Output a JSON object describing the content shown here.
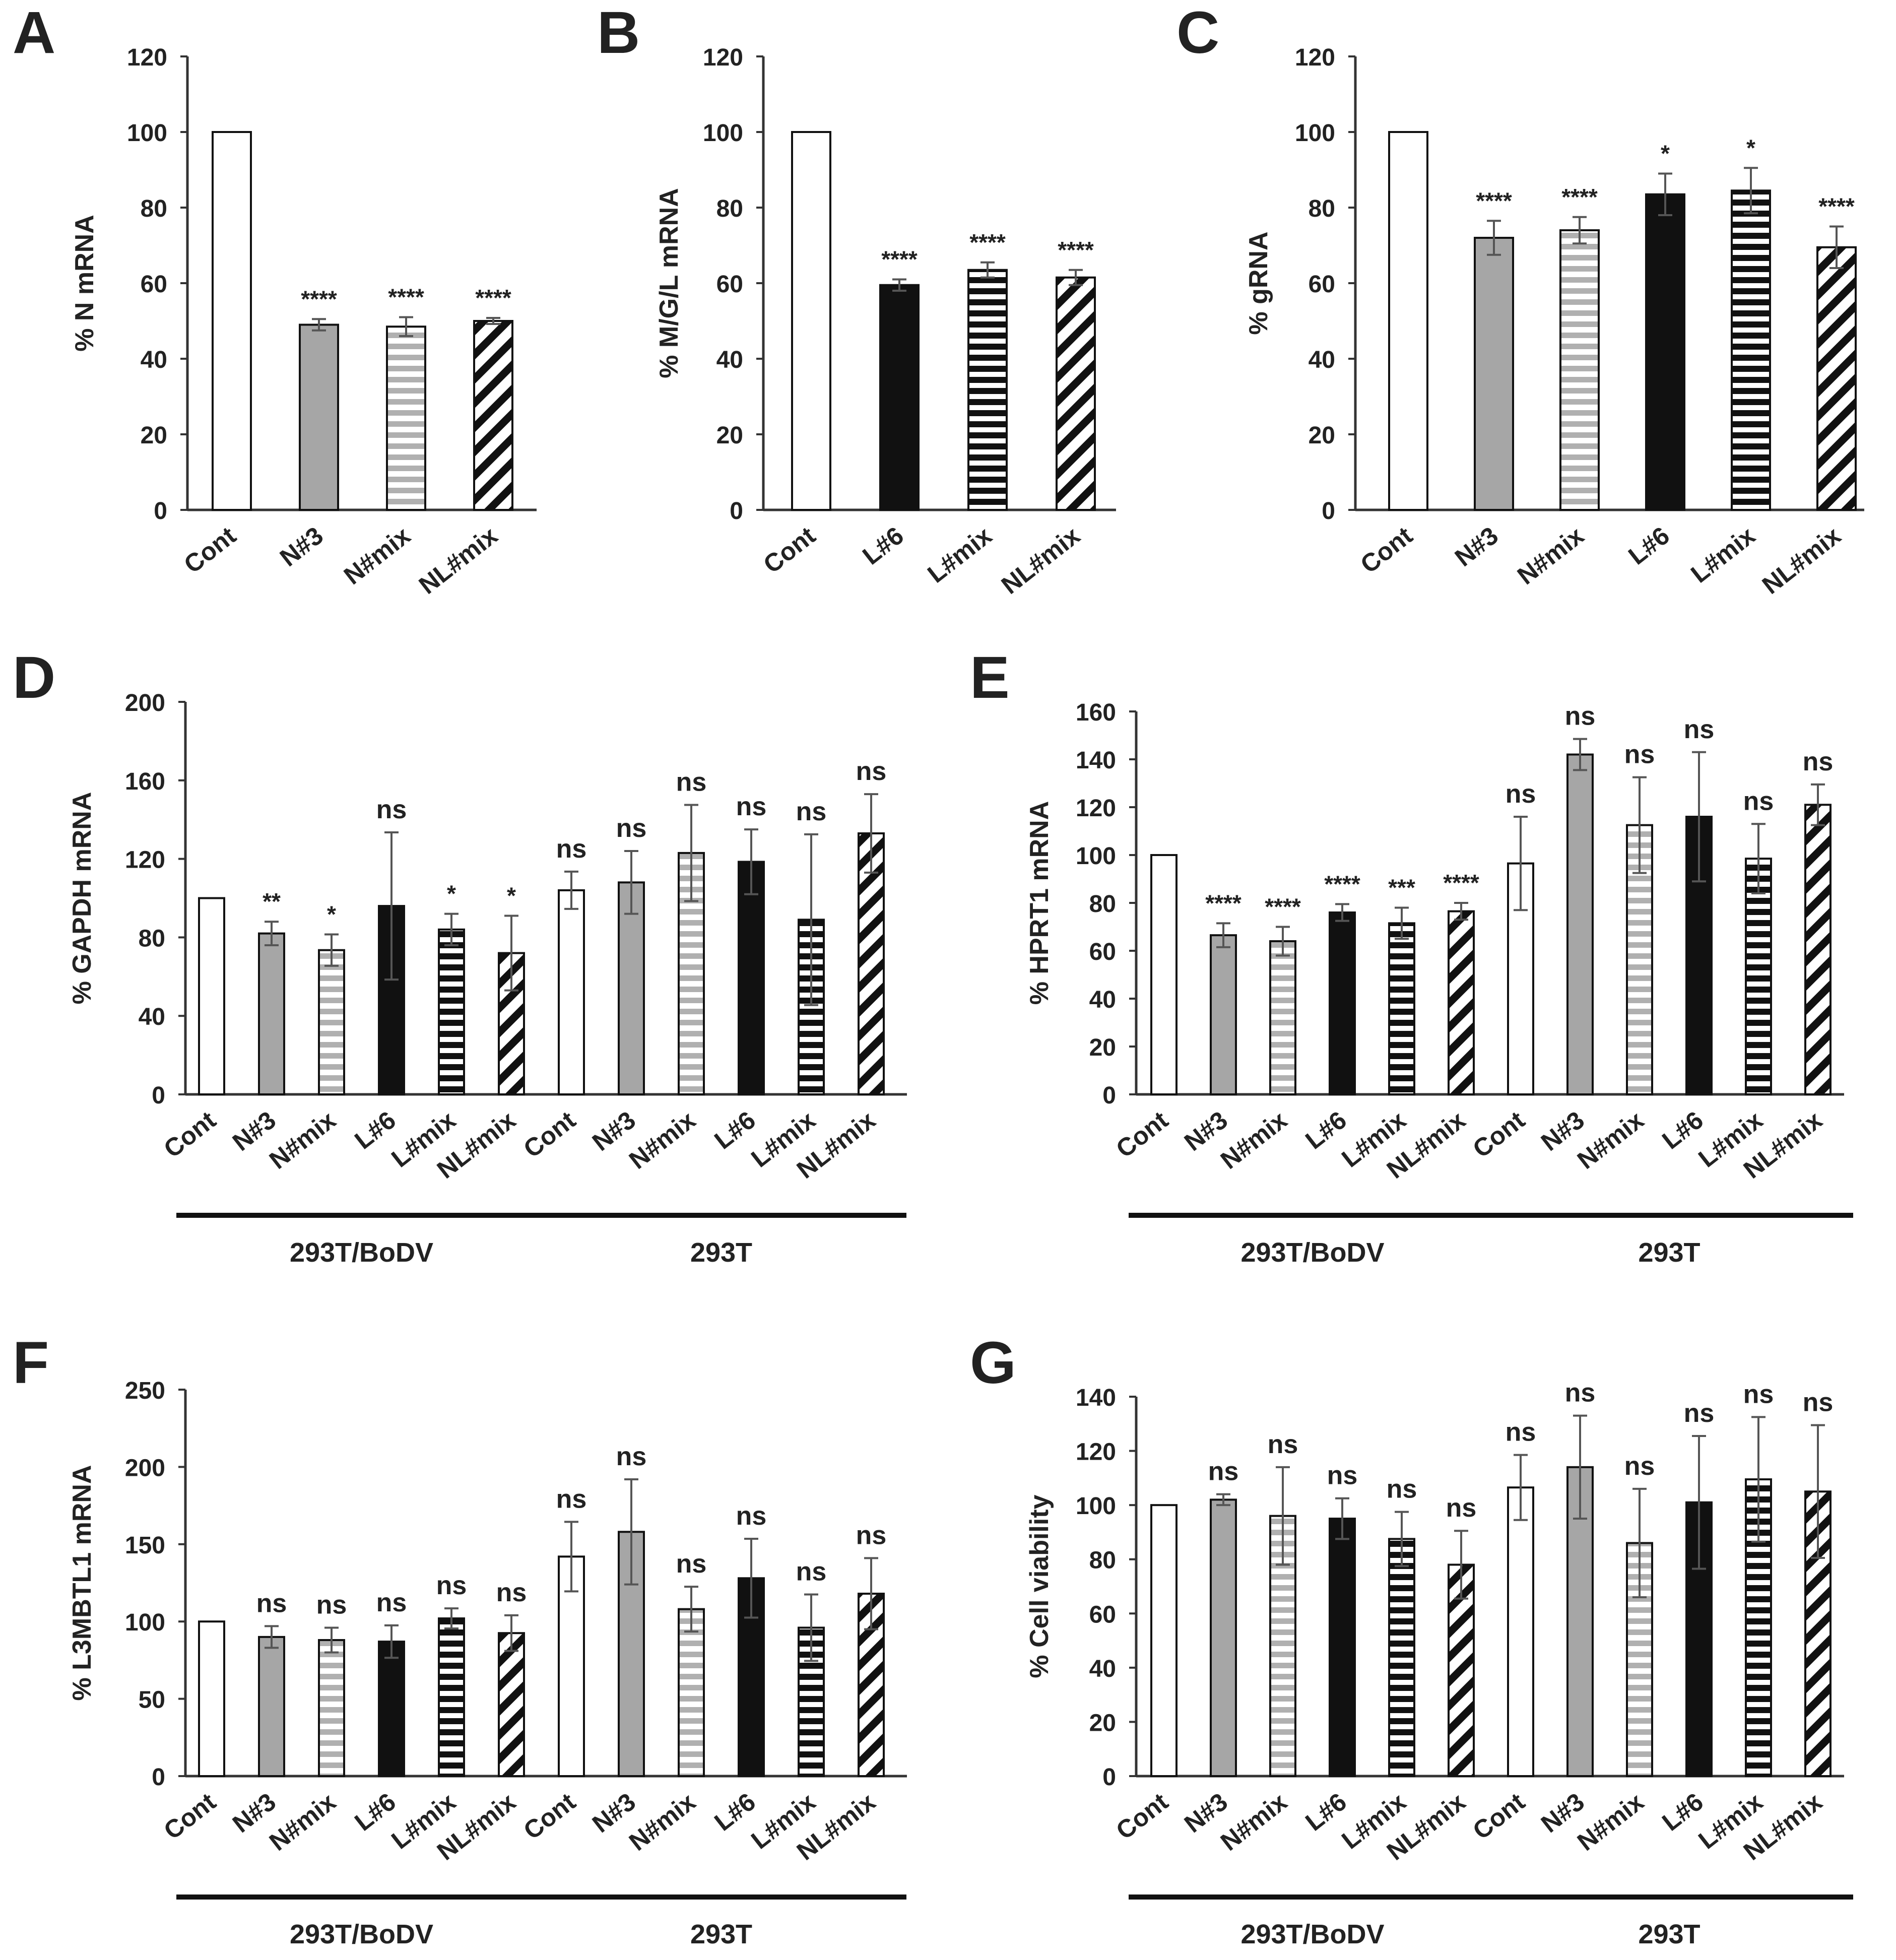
{
  "figure": {
    "patterns": {
      "white": "#ffffff",
      "gray": "#a6a6a6",
      "black": "#111111",
      "hstripe_light": "light gray horizontal stripes",
      "hstripe_dark": "black horizontal stripes",
      "diag": "black diagonal stripes"
    }
  },
  "chart_data": [
    {
      "panel": "A",
      "type": "bar",
      "ylabel": "% N mRNA",
      "ylim": [
        0,
        120
      ],
      "yticks": [
        "0",
        "20",
        "40",
        "60",
        "80",
        "100",
        "120"
      ],
      "categories": [
        "Cont",
        "N#3",
        "N#mix",
        "NL#mix"
      ],
      "values": [
        100,
        49,
        48.5,
        50
      ],
      "errors": [
        0,
        1.5,
        2.5,
        0.8
      ],
      "significance": [
        "",
        "****",
        "****",
        "****"
      ],
      "fills": [
        "white",
        "gray",
        "hstripe_light",
        "diag"
      ],
      "groups": []
    },
    {
      "panel": "B",
      "type": "bar",
      "ylabel": "% M/G/L mRNA",
      "ylim": [
        0,
        120
      ],
      "yticks": [
        "0",
        "20",
        "40",
        "60",
        "80",
        "100",
        "120"
      ],
      "categories": [
        "Cont",
        "L#6",
        "L#mix",
        "NL#mix"
      ],
      "values": [
        100,
        59.5,
        63.5,
        61.5
      ],
      "errors": [
        0,
        1.5,
        2,
        2
      ],
      "significance": [
        "",
        "****",
        "****",
        "****"
      ],
      "fills": [
        "white",
        "black",
        "hstripe_dark",
        "diag"
      ],
      "groups": []
    },
    {
      "panel": "C",
      "type": "bar",
      "ylabel": "% gRNA",
      "ylim": [
        0,
        120
      ],
      "yticks": [
        "0",
        "20",
        "40",
        "60",
        "80",
        "100",
        "120"
      ],
      "categories": [
        "Cont",
        "N#3",
        "N#mix",
        "L#6",
        "L#mix",
        "NL#mix"
      ],
      "values": [
        100,
        72,
        74,
        83.5,
        84.5,
        69.5
      ],
      "errors": [
        0,
        4.5,
        3.5,
        5.5,
        6,
        5.5
      ],
      "significance": [
        "",
        "****",
        "****",
        "*",
        "*",
        "****"
      ],
      "fills": [
        "white",
        "gray",
        "hstripe_light",
        "black",
        "hstripe_dark",
        "diag"
      ],
      "groups": []
    },
    {
      "panel": "D",
      "type": "bar",
      "ylabel": "% GAPDH mRNA",
      "ylim": [
        0,
        200
      ],
      "yticks": [
        "0",
        "40",
        "80",
        "120",
        "160",
        "200"
      ],
      "categories": [
        "Cont",
        "N#3",
        "N#mix",
        "L#6",
        "L#mix",
        "NL#mix",
        "Cont",
        "N#3",
        "N#mix",
        "L#6",
        "L#mix",
        "NL#mix"
      ],
      "values": [
        100,
        82,
        73.5,
        96,
        84,
        72,
        104,
        108,
        123,
        118.5,
        89,
        133
      ],
      "errors": [
        0,
        6,
        8,
        37.5,
        8,
        19,
        9.5,
        16,
        24.5,
        16.5,
        43.5,
        20
      ],
      "significance": [
        "",
        "**",
        "*",
        "ns",
        "*",
        "*",
        "ns",
        "ns",
        "ns",
        "ns",
        "ns",
        "ns"
      ],
      "fills": [
        "white",
        "gray",
        "hstripe_light",
        "black",
        "hstripe_dark",
        "diag",
        "white",
        "gray",
        "hstripe_light",
        "black",
        "hstripe_dark",
        "diag"
      ],
      "groups": [
        {
          "label": "293T/BoDV",
          "from": 0,
          "to": 5
        },
        {
          "label": "293T",
          "from": 6,
          "to": 11
        }
      ]
    },
    {
      "panel": "E",
      "type": "bar",
      "ylabel": "% HPRT1 mRNA",
      "ylim": [
        0,
        160
      ],
      "yticks": [
        "0",
        "20",
        "40",
        "60",
        "80",
        "100",
        "120",
        "140",
        "160"
      ],
      "categories": [
        "Cont",
        "N#3",
        "N#mix",
        "L#6",
        "L#mix",
        "NL#mix",
        "Cont",
        "N#3",
        "N#mix",
        "L#6",
        "L#mix",
        "NL#mix"
      ],
      "values": [
        100,
        66.5,
        64,
        76,
        71.5,
        76.5,
        96.5,
        142,
        112.5,
        116,
        98.5,
        121
      ],
      "errors": [
        0,
        5,
        6,
        3.5,
        6.5,
        3.5,
        19.5,
        6.5,
        20,
        27,
        14.5,
        8.5
      ],
      "significance": [
        "",
        "****",
        "****",
        "****",
        "***",
        "****",
        "ns",
        "ns",
        "ns",
        "ns",
        "ns",
        "ns"
      ],
      "fills": [
        "white",
        "gray",
        "hstripe_light",
        "black",
        "hstripe_dark",
        "diag",
        "white",
        "gray",
        "hstripe_light",
        "black",
        "hstripe_dark",
        "diag"
      ],
      "groups": [
        {
          "label": "293T/BoDV",
          "from": 0,
          "to": 5
        },
        {
          "label": "293T",
          "from": 6,
          "to": 11
        }
      ]
    },
    {
      "panel": "F",
      "type": "bar",
      "ylabel": "% L3MBTL1 mRNA",
      "ylim": [
        0,
        250
      ],
      "yticks": [
        "0",
        "50",
        "100",
        "150",
        "200",
        "250"
      ],
      "categories": [
        "Cont",
        "N#3",
        "N#mix",
        "L#6",
        "L#mix",
        "NL#mix",
        "Cont",
        "N#3",
        "N#mix",
        "L#6",
        "L#mix",
        "NL#mix"
      ],
      "values": [
        100,
        90,
        88,
        87,
        102,
        92.5,
        142,
        158,
        108,
        128,
        96,
        118
      ],
      "errors": [
        0,
        7,
        8,
        10.5,
        6.5,
        11.5,
        22.5,
        34,
        14.5,
        25.5,
        21.5,
        23
      ],
      "significance": [
        "",
        "ns",
        "ns",
        "ns",
        "ns",
        "ns",
        "ns",
        "ns",
        "ns",
        "ns",
        "ns",
        "ns"
      ],
      "fills": [
        "white",
        "gray",
        "hstripe_light",
        "black",
        "hstripe_dark",
        "diag",
        "white",
        "gray",
        "hstripe_light",
        "black",
        "hstripe_dark",
        "diag"
      ],
      "groups": [
        {
          "label": "293T/BoDV",
          "from": 0,
          "to": 5
        },
        {
          "label": "293T",
          "from": 6,
          "to": 11
        }
      ]
    },
    {
      "panel": "G",
      "type": "bar",
      "ylabel": "% Cell viability",
      "ylim": [
        0,
        140
      ],
      "yticks": [
        "0",
        "20",
        "40",
        "60",
        "80",
        "100",
        "120",
        "140"
      ],
      "categories": [
        "Cont",
        "N#3",
        "N#mix",
        "L#6",
        "L#mix",
        "NL#mix",
        "Cont",
        "N#3",
        "N#mix",
        "L#6",
        "L#mix",
        "NL#mix"
      ],
      "values": [
        100,
        102,
        96,
        95,
        87.5,
        78,
        106.5,
        114,
        86,
        101,
        109.5,
        105
      ],
      "errors": [
        0,
        2,
        18,
        7.5,
        10,
        12.5,
        12,
        19,
        20,
        24.5,
        23,
        24.5
      ],
      "significance": [
        "",
        "ns",
        "ns",
        "ns",
        "ns",
        "ns",
        "ns",
        "ns",
        "ns",
        "ns",
        "ns",
        "ns"
      ],
      "fills": [
        "white",
        "gray",
        "hstripe_light",
        "black",
        "hstripe_dark",
        "diag",
        "white",
        "gray",
        "hstripe_light",
        "black",
        "hstripe_dark",
        "diag"
      ],
      "groups": [
        {
          "label": "293T/BoDV",
          "from": 0,
          "to": 5
        },
        {
          "label": "293T",
          "from": 6,
          "to": 11
        }
      ]
    }
  ]
}
